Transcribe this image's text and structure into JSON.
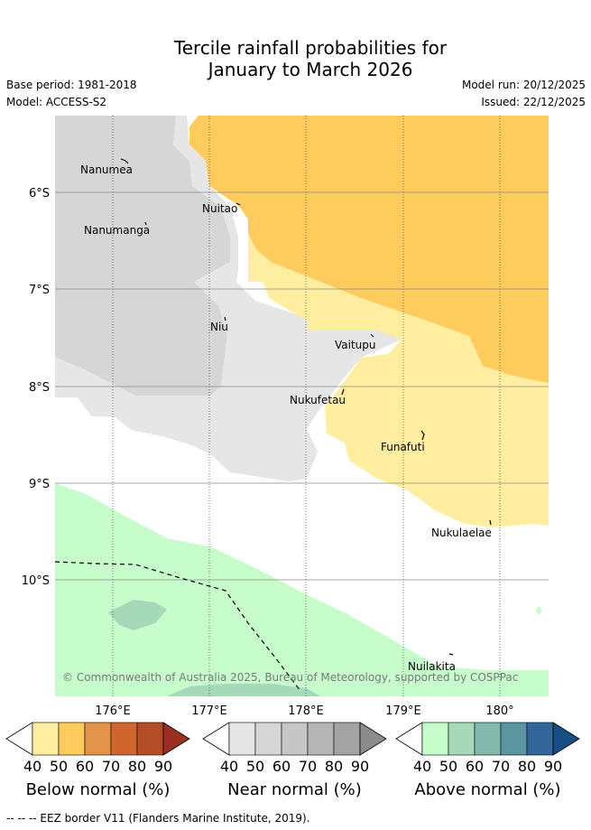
{
  "title_line1": "Tercile rainfall probabilities for",
  "title_line2": "January to March 2026",
  "base_period": "Base period: 1981-2018",
  "model": "Model: ACCESS-S2",
  "model_run": "Model run: 20/12/2025",
  "issued": "Issued: 22/12/2025",
  "lat_labels": [
    "6°S",
    "7°S",
    "8°S",
    "9°S",
    "10°S"
  ],
  "lon_labels": [
    "176°E",
    "177°E",
    "178°E",
    "179°E",
    "180°"
  ],
  "islands": [
    "Nanumea",
    "Nuitao",
    "Nanumanga",
    "Niu",
    "Vaitupu",
    "Nukufetau",
    "Funafuti",
    "Nukulaelae",
    "Nuilakita"
  ],
  "credit": "© Commonwealth of Australia 2025, Bureau of Meteorology, supported by COSPPac",
  "colorbars": [
    {
      "title": "Below normal (%)",
      "ticks": [
        "40",
        "50",
        "60",
        "70",
        "80",
        "90"
      ],
      "colors": [
        "#ffeda0",
        "#fecc5c",
        "#e3944a",
        "#d0662f",
        "#b24d27",
        "#9a2f20"
      ]
    },
    {
      "title": "Near normal (%)",
      "ticks": [
        "40",
        "50",
        "60",
        "70",
        "80",
        "90"
      ],
      "colors": [
        "#e6e6e6",
        "#d6d6d6",
        "#c6c6c6",
        "#b6b6b6",
        "#a3a3a3",
        "#8c8c8c"
      ]
    },
    {
      "title": "Above normal (%)",
      "ticks": [
        "40",
        "50",
        "60",
        "70",
        "80",
        "90"
      ],
      "colors": [
        "#c7fccb",
        "#a5d9b9",
        "#84b9ae",
        "#5b95a0",
        "#336699",
        "#164e85"
      ]
    }
  ],
  "footer": "--  --  -- EEZ border V11 (Flanders Marine Institute, 2019)."
}
